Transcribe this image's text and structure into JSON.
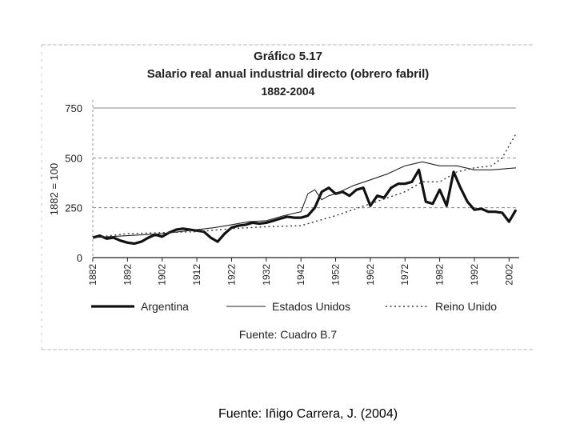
{
  "chart_data": {
    "type": "line",
    "title": "Gráfico 5.17",
    "subtitle": "Salario real anual industrial directo (obrero fabril)",
    "period": "1882-2004",
    "ylabel": "1882 = 100",
    "xlabel": "",
    "ylim": [
      0,
      750
    ],
    "xlim": [
      1882,
      2004
    ],
    "yticks": [
      "0",
      "250",
      "500",
      "750"
    ],
    "xticks": [
      "1882",
      "1892",
      "1902",
      "1912",
      "1922",
      "1932",
      "1942",
      "1952",
      "1962",
      "1972",
      "1982",
      "1992",
      "2002"
    ],
    "legend_position": "bottom",
    "source": "Fuente: Cuadro B.7",
    "series": [
      {
        "name": "Argentina",
        "style": "thick-solid",
        "color": "#111111",
        "points": [
          [
            1882,
            100
          ],
          [
            1884,
            110
          ],
          [
            1886,
            95
          ],
          [
            1888,
            100
          ],
          [
            1890,
            85
          ],
          [
            1892,
            75
          ],
          [
            1894,
            70
          ],
          [
            1896,
            80
          ],
          [
            1898,
            100
          ],
          [
            1900,
            115
          ],
          [
            1902,
            105
          ],
          [
            1904,
            125
          ],
          [
            1906,
            140
          ],
          [
            1908,
            145
          ],
          [
            1910,
            140
          ],
          [
            1912,
            135
          ],
          [
            1914,
            130
          ],
          [
            1916,
            100
          ],
          [
            1918,
            80
          ],
          [
            1920,
            120
          ],
          [
            1922,
            150
          ],
          [
            1924,
            160
          ],
          [
            1926,
            165
          ],
          [
            1928,
            175
          ],
          [
            1930,
            170
          ],
          [
            1932,
            175
          ],
          [
            1934,
            185
          ],
          [
            1936,
            195
          ],
          [
            1938,
            205
          ],
          [
            1940,
            200
          ],
          [
            1942,
            200
          ],
          [
            1944,
            210
          ],
          [
            1946,
            250
          ],
          [
            1948,
            330
          ],
          [
            1950,
            350
          ],
          [
            1952,
            320
          ],
          [
            1954,
            330
          ],
          [
            1956,
            310
          ],
          [
            1958,
            340
          ],
          [
            1960,
            350
          ],
          [
            1962,
            260
          ],
          [
            1964,
            310
          ],
          [
            1966,
            300
          ],
          [
            1968,
            350
          ],
          [
            1970,
            370
          ],
          [
            1972,
            370
          ],
          [
            1974,
            380
          ],
          [
            1976,
            440
          ],
          [
            1978,
            280
          ],
          [
            1980,
            270
          ],
          [
            1982,
            340
          ],
          [
            1984,
            260
          ],
          [
            1986,
            430
          ],
          [
            1988,
            350
          ],
          [
            1990,
            280
          ],
          [
            1992,
            240
          ],
          [
            1994,
            245
          ],
          [
            1996,
            230
          ],
          [
            1998,
            230
          ],
          [
            2000,
            225
          ],
          [
            2002,
            180
          ],
          [
            2004,
            240
          ]
        ]
      },
      {
        "name": "Estados Unidos",
        "style": "thin-solid",
        "color": "#222222",
        "points": [
          [
            1882,
            100
          ],
          [
            1887,
            105
          ],
          [
            1892,
            110
          ],
          [
            1897,
            115
          ],
          [
            1902,
            120
          ],
          [
            1907,
            130
          ],
          [
            1912,
            140
          ],
          [
            1917,
            150
          ],
          [
            1922,
            165
          ],
          [
            1927,
            180
          ],
          [
            1932,
            185
          ],
          [
            1937,
            210
          ],
          [
            1942,
            230
          ],
          [
            1944,
            320
          ],
          [
            1946,
            340
          ],
          [
            1948,
            290
          ],
          [
            1950,
            310
          ],
          [
            1952,
            320
          ],
          [
            1957,
            360
          ],
          [
            1962,
            390
          ],
          [
            1967,
            420
          ],
          [
            1972,
            460
          ],
          [
            1977,
            480
          ],
          [
            1982,
            460
          ],
          [
            1987,
            460
          ],
          [
            1992,
            440
          ],
          [
            1997,
            440
          ],
          [
            2004,
            450
          ]
        ]
      },
      {
        "name": "Reino Unido",
        "style": "dotted",
        "color": "#333333",
        "points": [
          [
            1882,
            100
          ],
          [
            1892,
            120
          ],
          [
            1902,
            125
          ],
          [
            1912,
            130
          ],
          [
            1922,
            145
          ],
          [
            1932,
            155
          ],
          [
            1942,
            160
          ],
          [
            1952,
            210
          ],
          [
            1962,
            270
          ],
          [
            1972,
            330
          ],
          [
            1977,
            380
          ],
          [
            1982,
            380
          ],
          [
            1987,
            430
          ],
          [
            1992,
            450
          ],
          [
            1997,
            460
          ],
          [
            2000,
            500
          ],
          [
            2004,
            620
          ]
        ]
      }
    ]
  },
  "caption": "Fuente: Iñigo Carrera, J. (2004)"
}
